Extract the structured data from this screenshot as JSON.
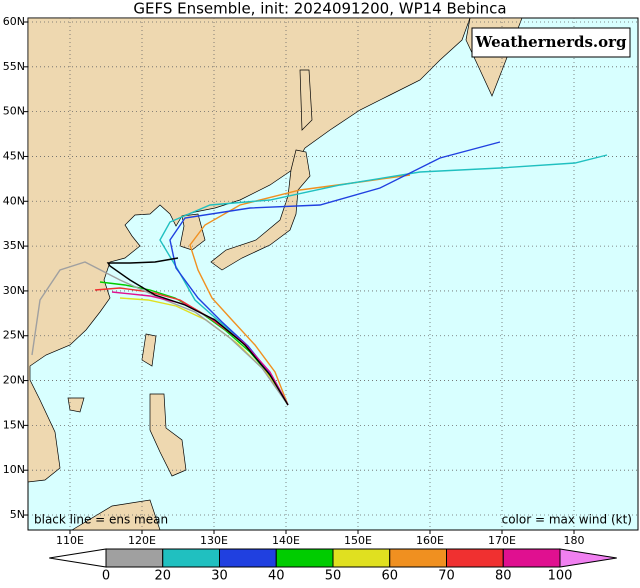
{
  "title": "GEFS Ensemble, init: 2024091200, WP14 Bebinca",
  "watermark": "Weathernerds.org",
  "map": {
    "lon_ticks": [
      {
        "value": 110,
        "label": "110E"
      },
      {
        "value": 120,
        "label": "120E"
      },
      {
        "value": 130,
        "label": "130E"
      },
      {
        "value": 140,
        "label": "140E"
      },
      {
        "value": 150,
        "label": "150E"
      },
      {
        "value": 160,
        "label": "160E"
      },
      {
        "value": 170,
        "label": "170E"
      },
      {
        "value": 180,
        "label": "180"
      }
    ],
    "lat_ticks": [
      {
        "value": 5,
        "label": "5N"
      },
      {
        "value": 10,
        "label": "10N"
      },
      {
        "value": 15,
        "label": "15N"
      },
      {
        "value": 20,
        "label": "20N"
      },
      {
        "value": 25,
        "label": "25N"
      },
      {
        "value": 30,
        "label": "30N"
      },
      {
        "value": 35,
        "label": "35N"
      },
      {
        "value": 40,
        "label": "40N"
      },
      {
        "value": 45,
        "label": "45N"
      },
      {
        "value": 50,
        "label": "50N"
      },
      {
        "value": 55,
        "label": "55N"
      },
      {
        "value": 60,
        "label": "60N"
      }
    ],
    "note_left": "black line = ens mean",
    "note_right": "color = max wind (kt)"
  },
  "colorbar": {
    "ticks": [
      0,
      20,
      30,
      40,
      50,
      60,
      70,
      80,
      100
    ],
    "colors": [
      "#a0a0a0",
      "#20c0c0",
      "#2040e0",
      "#00cc00",
      "#e0e020",
      "#f09020",
      "#f03030",
      "#e01090"
    ]
  }
}
